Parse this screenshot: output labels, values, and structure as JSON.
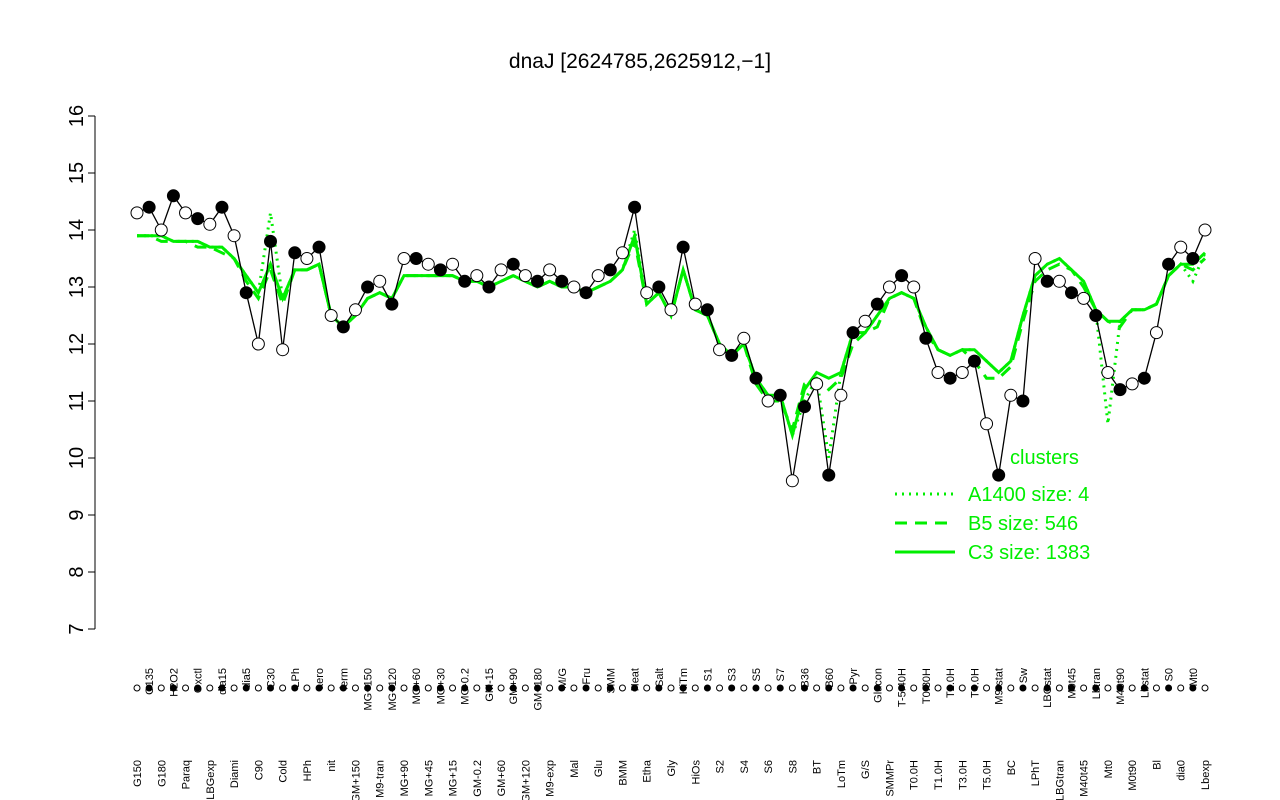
{
  "chart_data": {
    "type": "line",
    "title": "dnaJ [2624785,2625912,−1]",
    "legend_title": "clusters",
    "legend": "bottom-right",
    "line_color": "#000000",
    "categories": [
      "G150",
      "G135",
      "G180",
      "H2O2",
      "Paraq",
      "Oxctl",
      "LBGexp",
      "dia15",
      "Diami",
      "dia5",
      "C90",
      "C30",
      "Cold",
      "LPh",
      "HPh",
      "aero",
      "nit",
      "ferm",
      "GM+150",
      "MG+150",
      "M9-tran",
      "MG+120",
      "MG+90",
      "MG+60",
      "MG+45",
      "MG+30",
      "MG+15",
      "MG-0.2",
      "GM-0.2",
      "GM-15",
      "GM+60",
      "GM+90",
      "GM+120",
      "GM+180",
      "M9-exp",
      "M/G",
      "Mal",
      "Fru",
      "Glu",
      "SMM",
      "BMM",
      "Heat",
      "Etha",
      "Salt",
      "Gly",
      "HiTm",
      "HiOs",
      "S1",
      "S2",
      "S3",
      "S4",
      "S5",
      "S6",
      "S7",
      "S8",
      "B36",
      "BT",
      "B60",
      "LoTm",
      "Pyr",
      "G/S",
      "Glucon",
      "SMMPr",
      "T-5.40H",
      "T0.0H",
      "T0.30H",
      "T1.0H",
      "T2.0H",
      "T3.0H",
      "T4.0H",
      "T5.0H",
      "M9-stat",
      "BC",
      "Sw",
      "LPhT",
      "LBGstat",
      "LBGtran",
      "M0t45",
      "M40t45",
      "Lbtran",
      "Mt0",
      "M40t90",
      "M0t90",
      "Lbstat",
      "Bl",
      "S0",
      "dia0",
      "Mt0",
      "Lbexp"
    ],
    "values": [
      14.3,
      14.4,
      14.0,
      14.6,
      14.3,
      14.2,
      14.1,
      14.4,
      13.9,
      12.9,
      12.0,
      13.8,
      11.9,
      13.6,
      13.5,
      13.7,
      12.5,
      12.3,
      12.6,
      13.0,
      13.1,
      12.7,
      13.5,
      13.5,
      13.4,
      13.3,
      13.4,
      13.1,
      13.2,
      13.0,
      13.3,
      13.4,
      13.2,
      13.1,
      13.3,
      13.1,
      13.0,
      12.9,
      13.2,
      13.3,
      13.6,
      14.4,
      12.9,
      13.0,
      12.6,
      13.7,
      12.7,
      12.6,
      11.9,
      11.8,
      12.1,
      11.4,
      11.0,
      11.1,
      9.6,
      10.9,
      11.3,
      9.7,
      11.1,
      12.2,
      12.4,
      12.7,
      13.0,
      13.2,
      13.0,
      12.1,
      11.5,
      11.4,
      11.5,
      11.7,
      10.6,
      9.7,
      11.1,
      11.0,
      13.5,
      13.1,
      13.1,
      12.9,
      12.8,
      12.5,
      11.5,
      11.2,
      11.3,
      11.4,
      12.2,
      13.4,
      13.7,
      13.5,
      14.0
    ],
    "series": [
      {
        "name": "A1400 size: 4",
        "color": "#00ee00",
        "dash": "dotted",
        "values": [
          13.9,
          13.9,
          13.9,
          13.8,
          13.8,
          13.8,
          13.7,
          13.7,
          13.5,
          13.2,
          12.9,
          14.3,
          12.8,
          13.3,
          13.3,
          13.4,
          12.5,
          12.3,
          12.5,
          12.8,
          12.9,
          12.8,
          13.2,
          13.2,
          13.2,
          13.2,
          13.2,
          13.1,
          13.1,
          13.0,
          13.1,
          13.2,
          13.1,
          13.0,
          13.1,
          13.0,
          13.0,
          12.9,
          13.0,
          13.1,
          13.3,
          14.0,
          12.7,
          12.9,
          12.5,
          13.3,
          12.6,
          12.5,
          12.0,
          11.8,
          12.0,
          11.4,
          11.1,
          11.1,
          10.4,
          11.0,
          11.4,
          10.0,
          11.5,
          12.2,
          12.2,
          12.5,
          12.8,
          12.9,
          12.8,
          12.3,
          11.9,
          11.8,
          11.9,
          11.9,
          11.7,
          11.5,
          11.7,
          12.5,
          13.2,
          13.4,
          13.5,
          13.3,
          13.1,
          12.6,
          10.6,
          12.4,
          12.6,
          12.6,
          12.7,
          13.2,
          13.4,
          13.1,
          13.6
        ]
      },
      {
        "name": "B5 size: 546",
        "color": "#00ee00",
        "dash": "dashed",
        "values": [
          13.9,
          13.9,
          13.8,
          13.8,
          13.8,
          13.7,
          13.7,
          13.6,
          13.5,
          13.1,
          12.8,
          13.3,
          12.7,
          13.3,
          13.3,
          13.4,
          12.5,
          12.3,
          12.5,
          12.8,
          12.9,
          12.8,
          13.2,
          13.2,
          13.2,
          13.2,
          13.2,
          13.1,
          13.1,
          13.0,
          13.1,
          13.2,
          13.1,
          13.0,
          13.1,
          13.0,
          13.0,
          12.9,
          13.0,
          13.1,
          13.3,
          13.8,
          12.7,
          12.9,
          12.5,
          13.3,
          12.6,
          12.5,
          12.0,
          11.8,
          12.0,
          11.3,
          11.0,
          11.0,
          10.5,
          11.3,
          11.4,
          11.2,
          11.4,
          12.0,
          12.2,
          12.3,
          12.8,
          12.9,
          12.8,
          12.2,
          11.9,
          11.8,
          11.9,
          11.7,
          11.4,
          11.4,
          11.6,
          12.4,
          13.1,
          13.3,
          13.4,
          13.3,
          13.0,
          12.6,
          12.4,
          12.3,
          12.6,
          12.6,
          12.7,
          13.2,
          13.4,
          13.3,
          13.5
        ]
      },
      {
        "name": "C3 size: 1383",
        "color": "#00ee00",
        "dash": "solid",
        "values": [
          13.9,
          13.9,
          13.9,
          13.8,
          13.8,
          13.8,
          13.7,
          13.7,
          13.5,
          13.2,
          12.9,
          13.4,
          12.8,
          13.3,
          13.3,
          13.4,
          12.5,
          12.3,
          12.5,
          12.8,
          12.9,
          12.8,
          13.2,
          13.2,
          13.2,
          13.2,
          13.2,
          13.1,
          13.1,
          13.0,
          13.1,
          13.2,
          13.1,
          13.0,
          13.1,
          13.0,
          13.0,
          12.9,
          13.0,
          13.1,
          13.3,
          13.9,
          12.7,
          12.9,
          12.5,
          13.3,
          12.6,
          12.5,
          12.0,
          11.8,
          12.0,
          11.4,
          11.1,
          11.1,
          10.4,
          11.2,
          11.5,
          11.4,
          11.5,
          12.2,
          12.2,
          12.5,
          12.8,
          12.9,
          12.8,
          12.3,
          11.9,
          11.8,
          11.9,
          11.9,
          11.7,
          11.5,
          11.7,
          12.5,
          13.2,
          13.4,
          13.5,
          13.3,
          13.1,
          12.6,
          12.4,
          12.4,
          12.6,
          12.6,
          12.7,
          13.2,
          13.4,
          13.4,
          13.6
        ]
      }
    ],
    "ylim": [
      7,
      16
    ],
    "yticks": [
      7,
      8,
      9,
      10,
      11,
      12,
      13,
      14,
      15,
      16
    ]
  }
}
